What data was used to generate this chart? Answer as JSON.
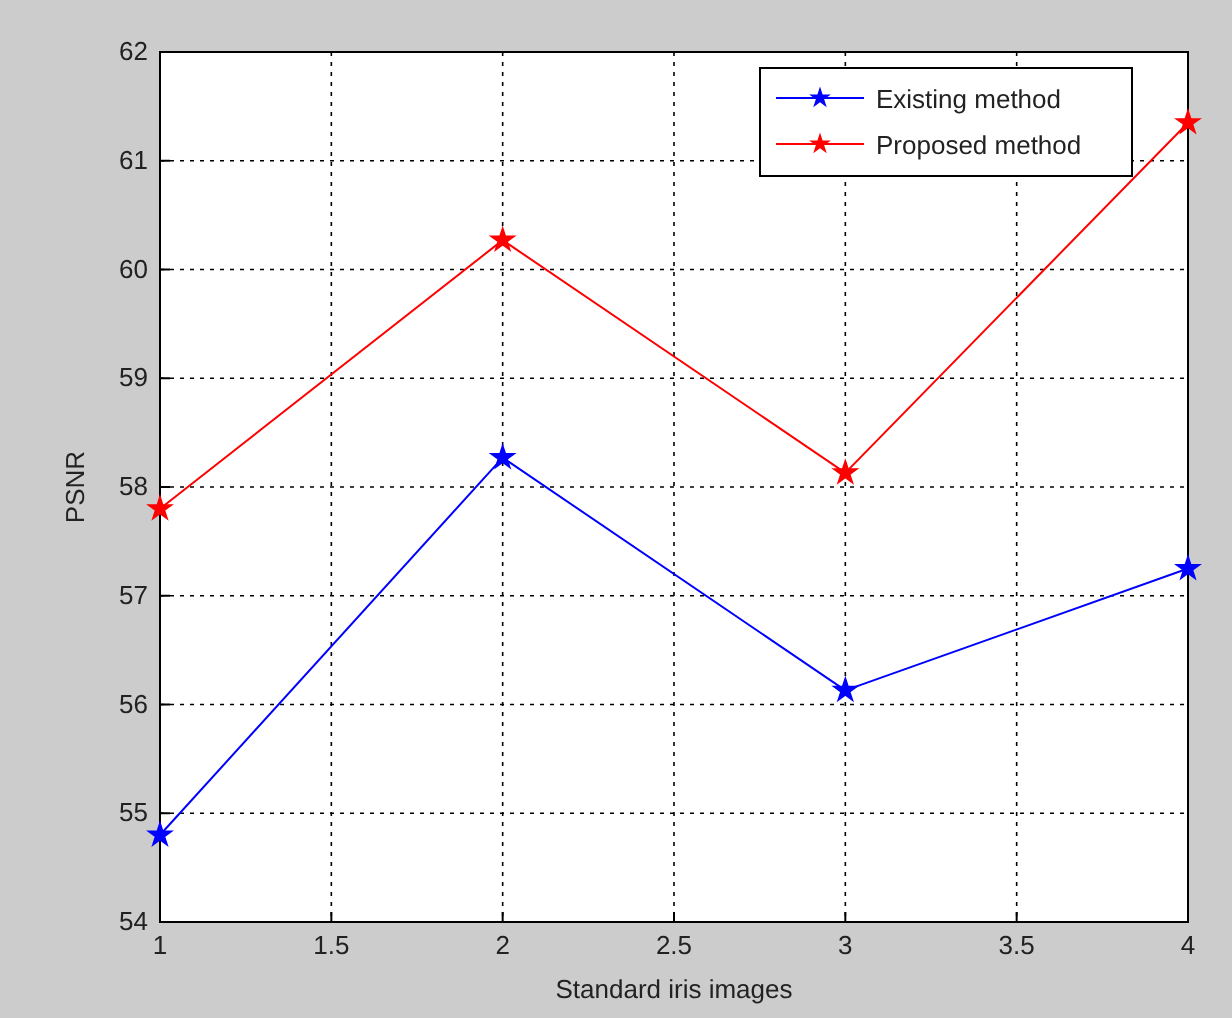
{
  "chart_data": {
    "type": "line",
    "xlabel": "Standard iris images",
    "ylabel": "PSNR",
    "x": [
      1,
      2,
      3,
      4
    ],
    "series": [
      {
        "name": "Existing method",
        "color": "#0000ff",
        "values": [
          54.8,
          58.27,
          56.13,
          57.25
        ]
      },
      {
        "name": "Proposed method",
        "color": "#ff0000",
        "values": [
          57.8,
          60.27,
          58.13,
          61.35
        ]
      }
    ],
    "xlim": [
      1,
      4
    ],
    "xticks": [
      1,
      1.5,
      2,
      2.5,
      3,
      3.5,
      4
    ],
    "ylim": [
      54,
      62
    ],
    "yticks": [
      54,
      55,
      56,
      57,
      58,
      59,
      60,
      61,
      62
    ],
    "grid": true,
    "legend": "top right",
    "marker": "star",
    "line_style": "solid"
  }
}
